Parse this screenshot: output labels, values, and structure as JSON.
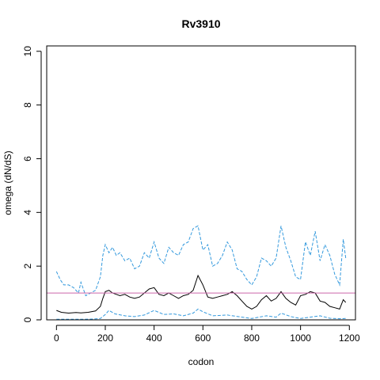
{
  "chart_data": {
    "type": "line",
    "title": "Rv3910",
    "xlabel": "codon",
    "ylabel": "omega (dN/dS)",
    "xlim": [
      -40,
      1225
    ],
    "ylim": [
      0,
      10.2
    ],
    "x_ticks": [
      0,
      200,
      400,
      600,
      800,
      1000,
      1200
    ],
    "y_ticks": [
      0,
      2,
      4,
      6,
      8,
      10
    ],
    "grid": false,
    "legend": "none",
    "reference_line": {
      "y": 1,
      "color": "#cc66aa"
    },
    "series": [
      {
        "style": "upper-bound",
        "color": "#3399dd",
        "dashed": true,
        "x": [
          0,
          15,
          30,
          50,
          70,
          90,
          100,
          120,
          140,
          160,
          180,
          190,
          200,
          215,
          230,
          245,
          260,
          280,
          300,
          320,
          340,
          360,
          380,
          400,
          420,
          440,
          460,
          480,
          500,
          520,
          540,
          560,
          580,
          600,
          620,
          640,
          660,
          680,
          700,
          720,
          740,
          760,
          780,
          800,
          820,
          840,
          860,
          880,
          900,
          920,
          940,
          960,
          980,
          1000,
          1020,
          1040,
          1060,
          1080,
          1100,
          1120,
          1140,
          1160,
          1175,
          1185
        ],
        "y": [
          1.8,
          1.5,
          1.3,
          1.3,
          1.2,
          1.0,
          1.4,
          0.9,
          1.0,
          1.1,
          1.6,
          2.4,
          2.8,
          2.5,
          2.7,
          2.4,
          2.5,
          2.2,
          2.3,
          1.9,
          2.0,
          2.5,
          2.3,
          2.9,
          2.3,
          2.1,
          2.7,
          2.5,
          2.4,
          2.8,
          2.9,
          3.4,
          3.5,
          2.6,
          2.8,
          2.0,
          2.1,
          2.4,
          2.9,
          2.6,
          1.9,
          1.8,
          1.5,
          1.3,
          1.6,
          2.3,
          2.2,
          2.0,
          2.3,
          3.5,
          2.7,
          2.2,
          1.6,
          1.5,
          2.9,
          2.4,
          3.3,
          2.2,
          2.8,
          2.4,
          1.7,
          1.3,
          3.0,
          2.3
        ]
      },
      {
        "style": "estimate",
        "color": "#000000",
        "dashed": false,
        "x": [
          0,
          20,
          50,
          80,
          100,
          130,
          160,
          180,
          190,
          200,
          215,
          230,
          245,
          260,
          280,
          300,
          320,
          340,
          360,
          380,
          400,
          420,
          440,
          460,
          480,
          500,
          520,
          540,
          560,
          580,
          600,
          620,
          640,
          660,
          680,
          700,
          720,
          740,
          760,
          780,
          800,
          820,
          840,
          860,
          880,
          900,
          920,
          940,
          960,
          980,
          1000,
          1020,
          1040,
          1060,
          1080,
          1100,
          1120,
          1140,
          1160,
          1175,
          1185
        ],
        "y": [
          0.35,
          0.28,
          0.25,
          0.27,
          0.26,
          0.28,
          0.33,
          0.5,
          0.8,
          1.05,
          1.1,
          1.0,
          0.95,
          0.9,
          0.95,
          0.85,
          0.8,
          0.85,
          1.0,
          1.15,
          1.2,
          0.95,
          0.9,
          1.0,
          0.9,
          0.8,
          0.9,
          0.95,
          1.1,
          1.65,
          1.3,
          0.85,
          0.8,
          0.85,
          0.9,
          0.95,
          1.05,
          0.9,
          0.7,
          0.5,
          0.4,
          0.5,
          0.75,
          0.9,
          0.7,
          0.8,
          1.05,
          0.8,
          0.65,
          0.55,
          0.9,
          0.95,
          1.05,
          1.0,
          0.7,
          0.65,
          0.5,
          0.45,
          0.4,
          0.75,
          0.65
        ]
      },
      {
        "style": "lower-bound",
        "color": "#3399dd",
        "dashed": true,
        "x": [
          0,
          50,
          100,
          150,
          180,
          200,
          215,
          240,
          280,
          320,
          360,
          400,
          440,
          480,
          520,
          560,
          580,
          600,
          640,
          700,
          760,
          800,
          860,
          900,
          920,
          960,
          1000,
          1040,
          1080,
          1120,
          1160,
          1185
        ],
        "y": [
          0.02,
          0.02,
          0.02,
          0.03,
          0.05,
          0.2,
          0.35,
          0.22,
          0.15,
          0.12,
          0.18,
          0.35,
          0.2,
          0.22,
          0.15,
          0.25,
          0.4,
          0.3,
          0.15,
          0.18,
          0.1,
          0.05,
          0.15,
          0.1,
          0.25,
          0.12,
          0.05,
          0.1,
          0.15,
          0.06,
          0.04,
          0.05
        ]
      }
    ]
  }
}
